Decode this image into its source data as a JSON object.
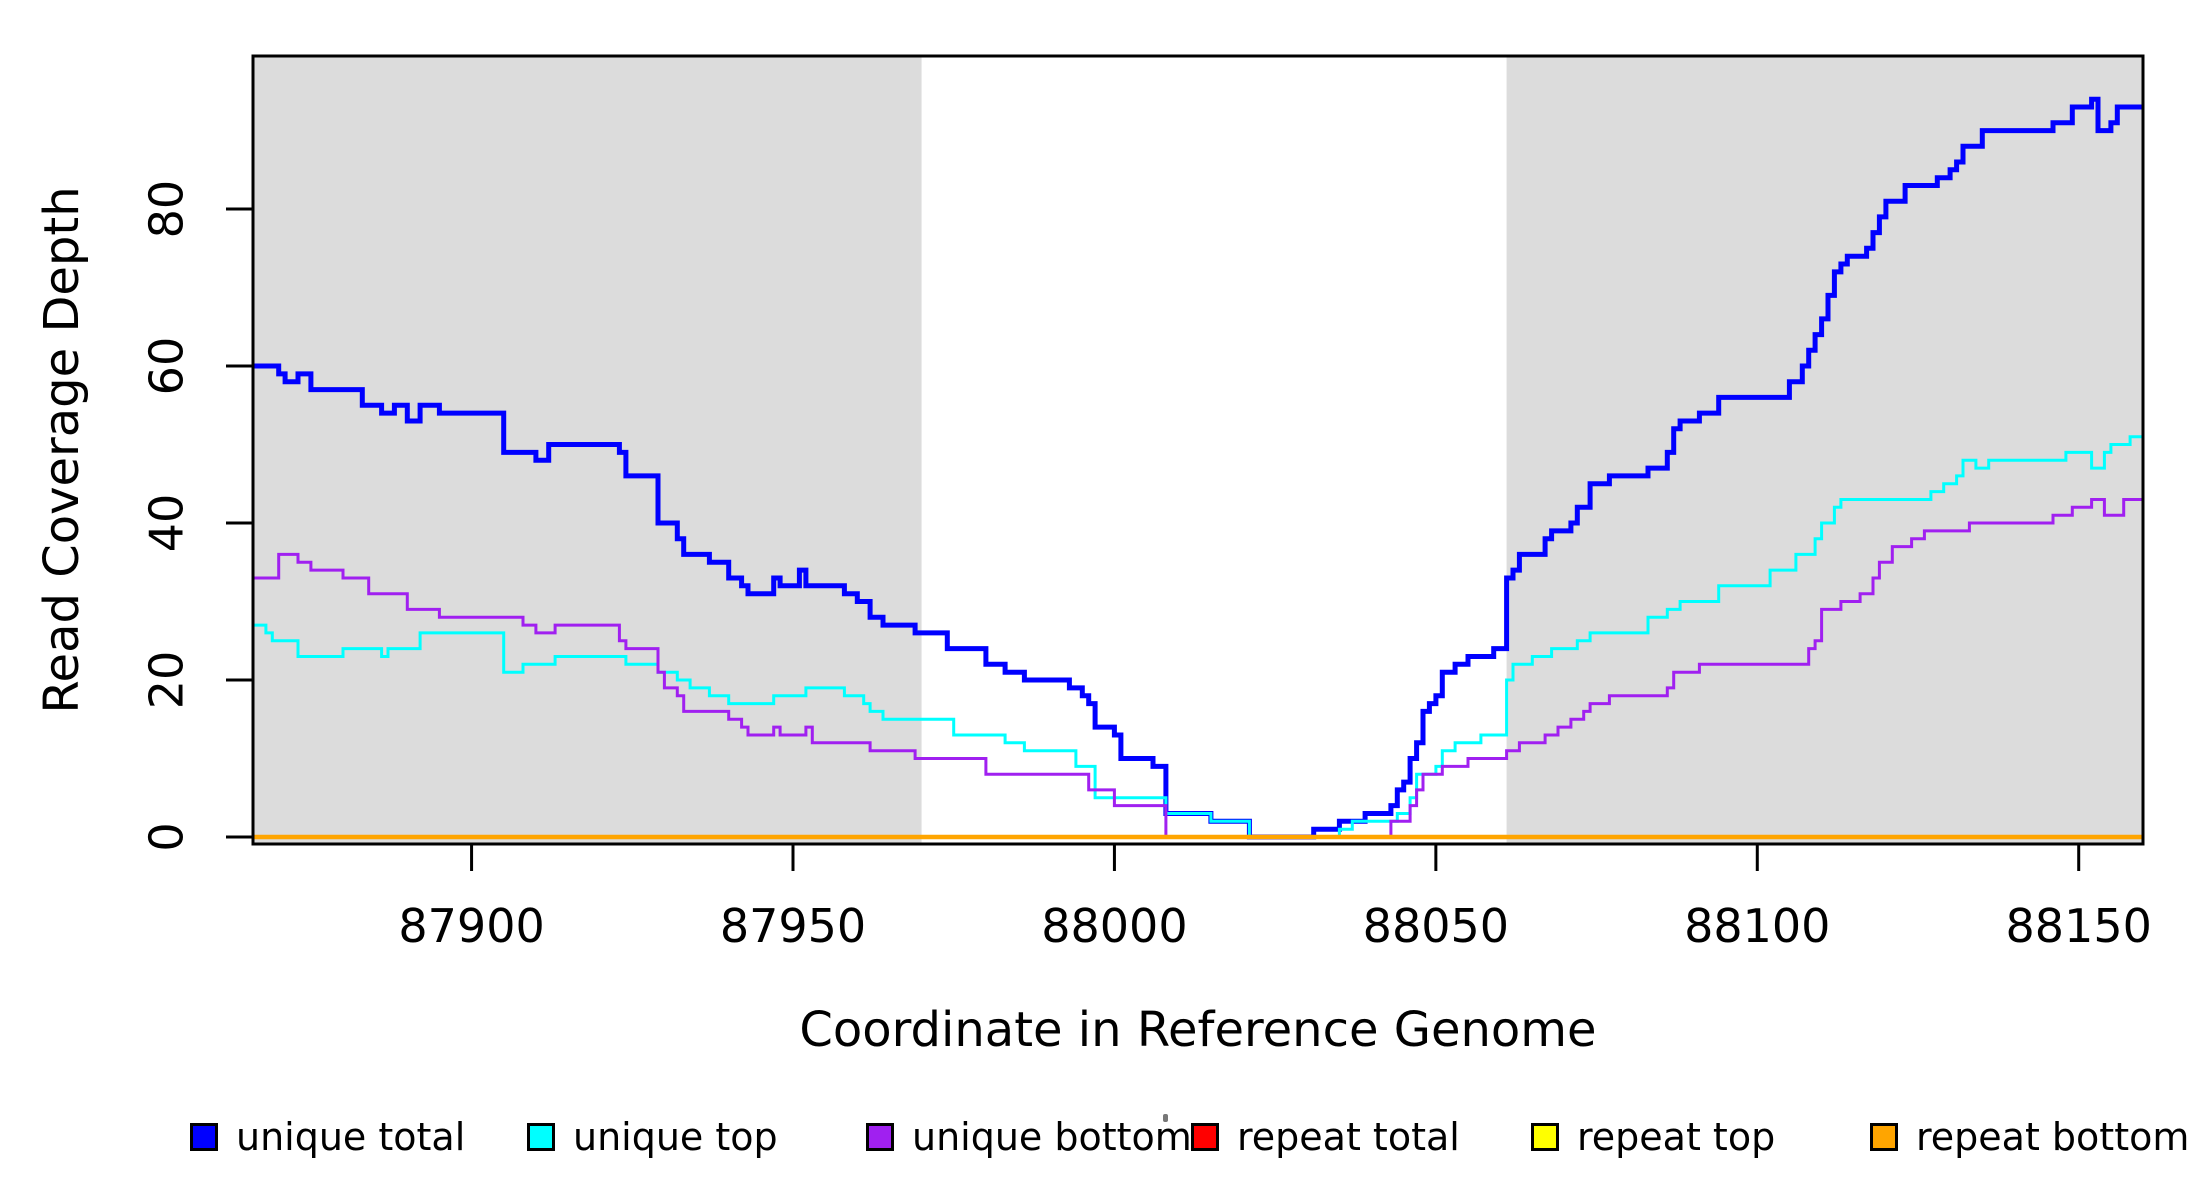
{
  "chart_data": {
    "type": "line",
    "subtype": "step",
    "title": "",
    "xlabel": "Coordinate in Reference Genome",
    "ylabel": "Read Coverage Depth",
    "xlim": [
      87866,
      88160
    ],
    "ylim": [
      0,
      99.5
    ],
    "x_ticks": [
      87900,
      87950,
      88000,
      88050,
      88100,
      88150
    ],
    "y_ticks": [
      0,
      20,
      40,
      60,
      80
    ],
    "grid": "off",
    "legend_position": "bottom",
    "background_color": "#ffffff",
    "masked_region_color": "#DCDCDC",
    "shaded_regions": [
      {
        "x0": 87866,
        "x1": 87970
      },
      {
        "x0": 88061,
        "x1": 88160
      }
    ],
    "series": [
      {
        "name": "unique total",
        "color": "#0000FF",
        "width": 5,
        "points": [
          [
            87866,
            60
          ],
          [
            87870,
            59
          ],
          [
            87871,
            58
          ],
          [
            87873,
            59
          ],
          [
            87875,
            57
          ],
          [
            87883,
            55
          ],
          [
            87886,
            54
          ],
          [
            87888,
            55
          ],
          [
            87890,
            53
          ],
          [
            87892,
            55
          ],
          [
            87895,
            54
          ],
          [
            87905,
            49
          ],
          [
            87910,
            48
          ],
          [
            87912,
            50
          ],
          [
            87923,
            49
          ],
          [
            87924,
            46
          ],
          [
            87929,
            40
          ],
          [
            87932,
            38
          ],
          [
            87933,
            36
          ],
          [
            87937,
            35
          ],
          [
            87940,
            33
          ],
          [
            87942,
            32
          ],
          [
            87943,
            31
          ],
          [
            87947,
            33
          ],
          [
            87948,
            32
          ],
          [
            87951,
            34
          ],
          [
            87952,
            32
          ],
          [
            87958,
            31
          ],
          [
            87960,
            30
          ],
          [
            87962,
            28
          ],
          [
            87964,
            27
          ],
          [
            87969,
            26
          ],
          [
            87974,
            24
          ],
          [
            87980,
            22
          ],
          [
            87983,
            21
          ],
          [
            87986,
            20
          ],
          [
            87993,
            19
          ],
          [
            87995,
            18
          ],
          [
            87996,
            17
          ],
          [
            87997,
            14
          ],
          [
            88000,
            13
          ],
          [
            88001,
            10
          ],
          [
            88006,
            9
          ],
          [
            88008,
            3
          ],
          [
            88015,
            2
          ],
          [
            88021,
            0
          ],
          [
            88031,
            1
          ],
          [
            88035,
            2
          ],
          [
            88039,
            3
          ],
          [
            88043,
            4
          ],
          [
            88044,
            6
          ],
          [
            88045,
            7
          ],
          [
            88046,
            10
          ],
          [
            88047,
            12
          ],
          [
            88048,
            16
          ],
          [
            88049,
            17
          ],
          [
            88050,
            18
          ],
          [
            88051,
            21
          ],
          [
            88053,
            22
          ],
          [
            88055,
            23
          ],
          [
            88059,
            24
          ],
          [
            88061,
            33
          ],
          [
            88062,
            34
          ],
          [
            88063,
            36
          ],
          [
            88067,
            38
          ],
          [
            88068,
            39
          ],
          [
            88071,
            40
          ],
          [
            88072,
            42
          ],
          [
            88074,
            45
          ],
          [
            88077,
            46
          ],
          [
            88083,
            47
          ],
          [
            88086,
            49
          ],
          [
            88087,
            52
          ],
          [
            88088,
            53
          ],
          [
            88091,
            54
          ],
          [
            88094,
            56
          ],
          [
            88105,
            58
          ],
          [
            88107,
            60
          ],
          [
            88108,
            62
          ],
          [
            88109,
            64
          ],
          [
            88110,
            66
          ],
          [
            88111,
            69
          ],
          [
            88112,
            72
          ],
          [
            88113,
            73
          ],
          [
            88114,
            74
          ],
          [
            88117,
            75
          ],
          [
            88118,
            77
          ],
          [
            88119,
            79
          ],
          [
            88120,
            81
          ],
          [
            88123,
            83
          ],
          [
            88128,
            84
          ],
          [
            88130,
            85
          ],
          [
            88131,
            86
          ],
          [
            88132,
            88
          ],
          [
            88135,
            90
          ],
          [
            88146,
            91
          ],
          [
            88149,
            93
          ],
          [
            88152,
            94
          ],
          [
            88153,
            90
          ],
          [
            88155,
            91
          ],
          [
            88156,
            93
          ],
          [
            88160,
            93
          ]
        ]
      },
      {
        "name": "unique top",
        "color": "#00FFFF",
        "width": 3,
        "points": [
          [
            87866,
            27
          ],
          [
            87868,
            26
          ],
          [
            87869,
            25
          ],
          [
            87873,
            23
          ],
          [
            87880,
            24
          ],
          [
            87886,
            23
          ],
          [
            87887,
            24
          ],
          [
            87892,
            26
          ],
          [
            87905,
            21
          ],
          [
            87908,
            22
          ],
          [
            87913,
            23
          ],
          [
            87924,
            22
          ],
          [
            87929,
            21
          ],
          [
            87932,
            20
          ],
          [
            87934,
            19
          ],
          [
            87937,
            18
          ],
          [
            87940,
            17
          ],
          [
            87947,
            18
          ],
          [
            87952,
            19
          ],
          [
            87958,
            18
          ],
          [
            87961,
            17
          ],
          [
            87962,
            16
          ],
          [
            87964,
            15
          ],
          [
            87975,
            13
          ],
          [
            87983,
            12
          ],
          [
            87986,
            11
          ],
          [
            87994,
            9
          ],
          [
            87997,
            5
          ],
          [
            88008,
            3
          ],
          [
            88015,
            2
          ],
          [
            88021,
            0
          ],
          [
            88035,
            1
          ],
          [
            88037,
            2
          ],
          [
            88044,
            3
          ],
          [
            88046,
            5
          ],
          [
            88047,
            8
          ],
          [
            88050,
            9
          ],
          [
            88051,
            11
          ],
          [
            88053,
            12
          ],
          [
            88057,
            13
          ],
          [
            88061,
            20
          ],
          [
            88062,
            22
          ],
          [
            88065,
            23
          ],
          [
            88068,
            24
          ],
          [
            88072,
            25
          ],
          [
            88074,
            26
          ],
          [
            88083,
            28
          ],
          [
            88086,
            29
          ],
          [
            88088,
            30
          ],
          [
            88094,
            32
          ],
          [
            88102,
            34
          ],
          [
            88106,
            36
          ],
          [
            88109,
            38
          ],
          [
            88110,
            40
          ],
          [
            88112,
            42
          ],
          [
            88113,
            43
          ],
          [
            88127,
            44
          ],
          [
            88129,
            45
          ],
          [
            88131,
            46
          ],
          [
            88132,
            48
          ],
          [
            88134,
            47
          ],
          [
            88136,
            48
          ],
          [
            88148,
            49
          ],
          [
            88152,
            47
          ],
          [
            88154,
            49
          ],
          [
            88155,
            50
          ],
          [
            88158,
            51
          ],
          [
            88160,
            51
          ]
        ]
      },
      {
        "name": "unique bottom",
        "color": "#A020F0",
        "width": 3,
        "points": [
          [
            87866,
            33
          ],
          [
            87870,
            36
          ],
          [
            87873,
            35
          ],
          [
            87875,
            34
          ],
          [
            87880,
            33
          ],
          [
            87884,
            31
          ],
          [
            87890,
            29
          ],
          [
            87895,
            28
          ],
          [
            87908,
            27
          ],
          [
            87910,
            26
          ],
          [
            87913,
            27
          ],
          [
            87923,
            25
          ],
          [
            87924,
            24
          ],
          [
            87929,
            21
          ],
          [
            87930,
            19
          ],
          [
            87932,
            18
          ],
          [
            87933,
            16
          ],
          [
            87940,
            15
          ],
          [
            87942,
            14
          ],
          [
            87943,
            13
          ],
          [
            87947,
            14
          ],
          [
            87948,
            13
          ],
          [
            87952,
            14
          ],
          [
            87953,
            12
          ],
          [
            87962,
            11
          ],
          [
            87969,
            10
          ],
          [
            87980,
            8
          ],
          [
            87996,
            6
          ],
          [
            88000,
            4
          ],
          [
            88008,
            0
          ],
          [
            88043,
            2
          ],
          [
            88046,
            4
          ],
          [
            88047,
            6
          ],
          [
            88048,
            8
          ],
          [
            88051,
            9
          ],
          [
            88055,
            10
          ],
          [
            88061,
            11
          ],
          [
            88063,
            12
          ],
          [
            88067,
            13
          ],
          [
            88069,
            14
          ],
          [
            88071,
            15
          ],
          [
            88073,
            16
          ],
          [
            88074,
            17
          ],
          [
            88077,
            18
          ],
          [
            88086,
            19
          ],
          [
            88087,
            21
          ],
          [
            88091,
            22
          ],
          [
            88108,
            24
          ],
          [
            88109,
            25
          ],
          [
            88110,
            29
          ],
          [
            88113,
            30
          ],
          [
            88116,
            31
          ],
          [
            88118,
            33
          ],
          [
            88119,
            35
          ],
          [
            88121,
            37
          ],
          [
            88124,
            38
          ],
          [
            88126,
            39
          ],
          [
            88133,
            40
          ],
          [
            88146,
            41
          ],
          [
            88149,
            42
          ],
          [
            88152,
            43
          ],
          [
            88154,
            41
          ],
          [
            88157,
            43
          ],
          [
            88160,
            43
          ]
        ]
      },
      {
        "name": "repeat total",
        "color": "#FF0000",
        "width": 3,
        "points": [
          [
            87866,
            0
          ],
          [
            88160,
            0
          ]
        ]
      },
      {
        "name": "repeat top",
        "color": "#FFFF00",
        "width": 3,
        "points": [
          [
            87866,
            0
          ],
          [
            88160,
            0
          ]
        ]
      },
      {
        "name": "repeat bottom",
        "color": "#FFA500",
        "width": 4.5,
        "points": [
          [
            87866,
            0
          ],
          [
            88160,
            0
          ]
        ]
      }
    ],
    "legend": [
      {
        "label": "unique total",
        "color": "#0000FF"
      },
      {
        "label": "unique top",
        "color": "#00FFFF"
      },
      {
        "label": "unique bottom",
        "color": "#A020F0"
      },
      {
        "label": "repeat total",
        "color": "#FF0000"
      },
      {
        "label": "repeat top",
        "color": "#FFFF00"
      },
      {
        "label": "repeat bottom",
        "color": "#FFA500"
      }
    ]
  }
}
